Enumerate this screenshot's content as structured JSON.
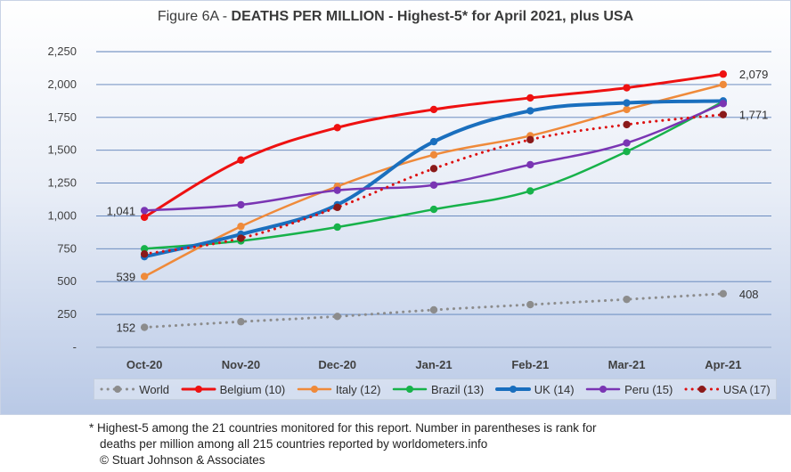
{
  "title": {
    "prefix": "Figure 6A - ",
    "bold": "DEATHS PER MILLION - Highest-5* for April 2021, plus USA"
  },
  "footnote": {
    "line1": "* Highest-5 among the 21 countries monitored for this report. Number in parentheses is rank for",
    "line2": "deaths per million among all 215 countries reported by worldometers.info",
    "line3": "© Stuart Johnson & Associates"
  },
  "chart_data": {
    "type": "line",
    "categories": [
      "Oct-20",
      "Nov-20",
      "Dec-20",
      "Jan-21",
      "Feb-21",
      "Mar-21",
      "Apr-21"
    ],
    "y_ticks": [
      "-",
      "250",
      "500",
      "750",
      "1,000",
      "1,250",
      "1,500",
      "1,750",
      "2,000",
      "2,250"
    ],
    "ylim": [
      0,
      2250
    ],
    "grid": true,
    "legend_position": "bottom",
    "series": [
      {
        "name": "World",
        "color": "#8c8c8c",
        "style": "dotted",
        "width": 3,
        "values": [
          152,
          195,
          235,
          285,
          325,
          365,
          408
        ]
      },
      {
        "name": "Belgium (10)",
        "color": "#ee1111",
        "style": "solid",
        "width": 3,
        "values": [
          990,
          1425,
          1672,
          1810,
          1898,
          1975,
          2079
        ]
      },
      {
        "name": "Italy (12)",
        "color": "#ef8a3a",
        "style": "solid",
        "width": 2.5,
        "values": [
          539,
          920,
          1225,
          1465,
          1610,
          1810,
          2000
        ]
      },
      {
        "name": "Brazil (13)",
        "color": "#17b24a",
        "style": "solid",
        "width": 2.5,
        "values": [
          750,
          810,
          915,
          1050,
          1190,
          1490,
          1870
        ]
      },
      {
        "name": "UK (14)",
        "color": "#1a6fbe",
        "style": "solid",
        "width": 4,
        "values": [
          690,
          860,
          1085,
          1565,
          1800,
          1860,
          1875
        ]
      },
      {
        "name": "Peru (15)",
        "color": "#7a35b3",
        "style": "solid",
        "width": 2.5,
        "values": [
          1041,
          1085,
          1195,
          1235,
          1390,
          1555,
          1855
        ]
      },
      {
        "name": "USA (17)",
        "color": "#dd1111",
        "style": "dotted",
        "width": 3,
        "marker_color": "#8a1a1a",
        "values": [
          710,
          830,
          1065,
          1360,
          1580,
          1695,
          1771
        ]
      }
    ],
    "data_labels": [
      {
        "series": "World",
        "index": 0,
        "text": "152",
        "side": "left"
      },
      {
        "series": "World",
        "index": 6,
        "text": "408",
        "side": "right"
      },
      {
        "series": "Italy (12)",
        "index": 0,
        "text": "539",
        "side": "left"
      },
      {
        "series": "Peru (15)",
        "index": 0,
        "text": "1,041",
        "side": "left"
      },
      {
        "series": "Belgium (10)",
        "index": 6,
        "text": "2,079",
        "side": "right"
      },
      {
        "series": "USA (17)",
        "index": 6,
        "text": "1,771",
        "side": "right"
      }
    ]
  }
}
